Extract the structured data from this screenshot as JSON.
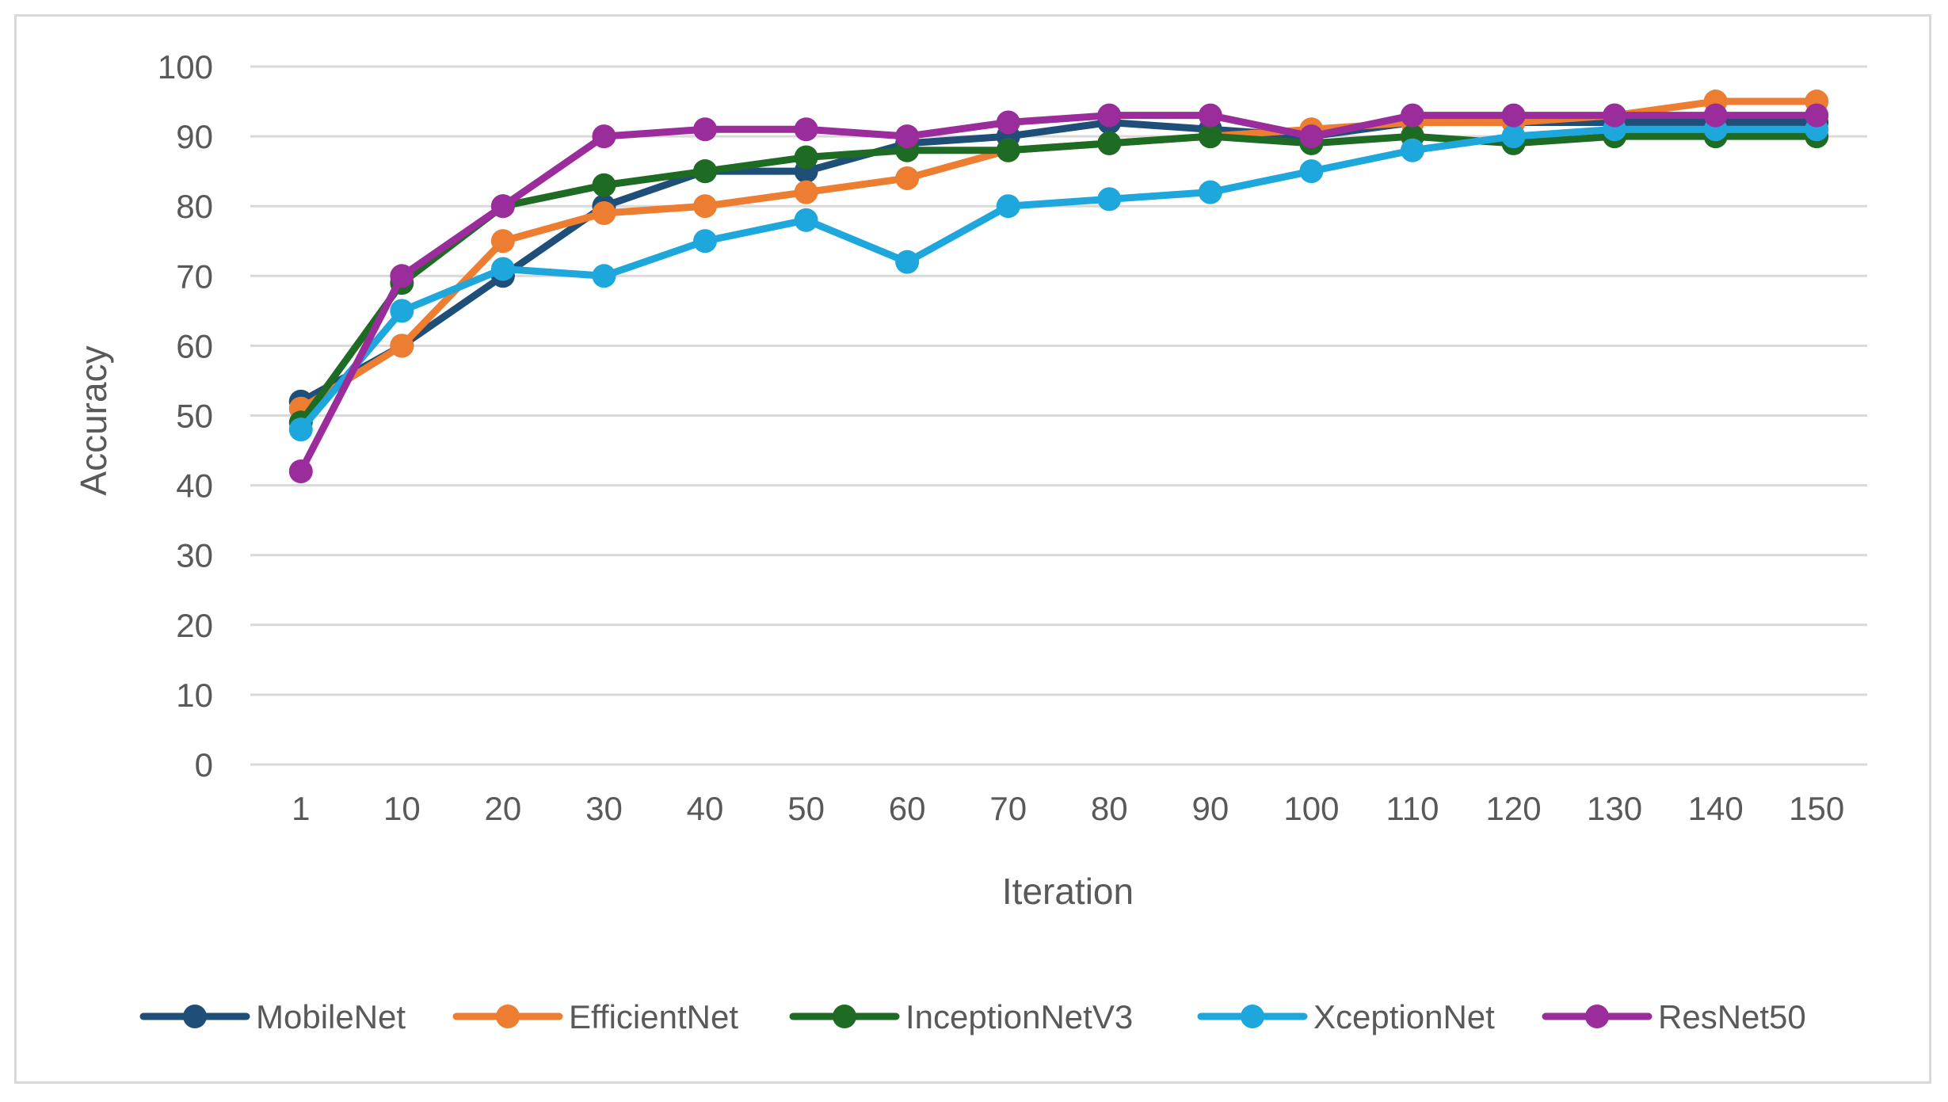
{
  "chart_data": {
    "type": "line",
    "title": "",
    "xlabel": "Iteration",
    "ylabel": "Accuracy",
    "categories": [
      "1",
      "10",
      "20",
      "30",
      "40",
      "50",
      "60",
      "70",
      "80",
      "90",
      "100",
      "110",
      "120",
      "130",
      "140",
      "150"
    ],
    "ylim": [
      0,
      100
    ],
    "yticks": [
      "0",
      "10",
      "20",
      "30",
      "40",
      "50",
      "60",
      "70",
      "80",
      "90",
      "100"
    ],
    "grid": true,
    "legend_position": "bottom",
    "series": [
      {
        "name": "MobileNet",
        "color": "#1f4e79",
        "values": [
          52,
          60,
          70,
          80,
          85,
          85,
          89,
          90,
          92,
          91,
          90,
          92,
          92,
          92,
          92,
          92
        ]
      },
      {
        "name": "EfficientNet",
        "color": "#ed7d31",
        "values": [
          51,
          60,
          75,
          79,
          80,
          82,
          84,
          88,
          89,
          90,
          91,
          92,
          92,
          93,
          95,
          95
        ]
      },
      {
        "name": "InceptionNetV3",
        "color": "#1e6b24",
        "values": [
          49,
          69,
          80,
          83,
          85,
          87,
          88,
          88,
          89,
          90,
          89,
          90,
          89,
          90,
          90,
          90
        ]
      },
      {
        "name": "XceptionNet",
        "color": "#1ea7dd",
        "values": [
          48,
          65,
          71,
          70,
          75,
          78,
          72,
          80,
          81,
          82,
          85,
          88,
          90,
          91,
          91,
          91
        ]
      },
      {
        "name": "ResNet50",
        "color": "#9b2c9b",
        "values": [
          42,
          70,
          80,
          90,
          91,
          91,
          90,
          92,
          93,
          93,
          90,
          93,
          93,
          93,
          93,
          93
        ]
      }
    ]
  }
}
